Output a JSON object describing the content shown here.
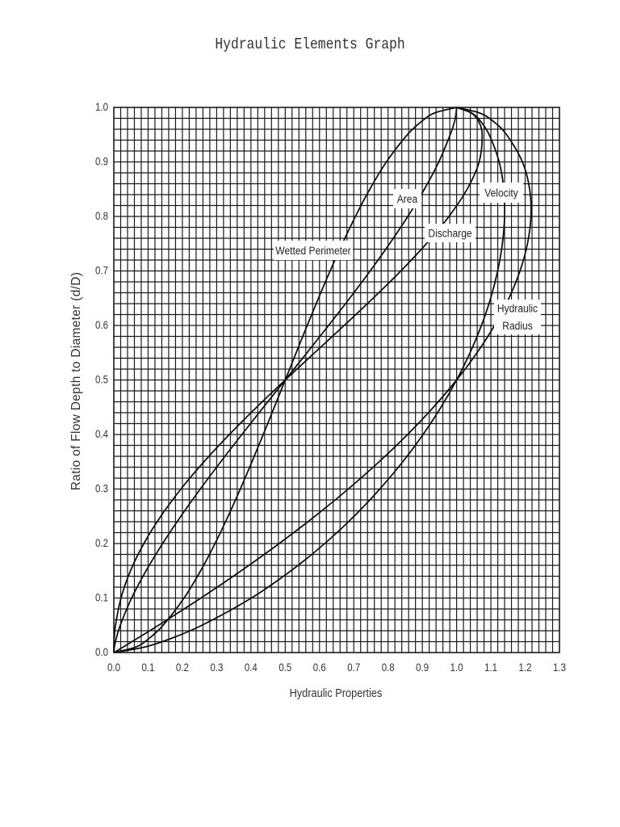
{
  "title": "Hydraulic Elements Graph",
  "chart_data": {
    "type": "line",
    "title": "Hydraulic Elements Graph",
    "xlabel": "Hydraulic Properties",
    "ylabel": "Ratio of Flow Depth to Diameter (d/D)",
    "xlim": [
      0.0,
      1.3
    ],
    "ylim": [
      0.0,
      1.0
    ],
    "x_ticks": [
      "0.0",
      "0.1",
      "0.2",
      "0.3",
      "0.4",
      "0.5",
      "0.6",
      "0.7",
      "0.8",
      "0.9",
      "1.0",
      "1.1",
      "1.2",
      "1.3"
    ],
    "y_ticks": [
      "0.0",
      "0.1",
      "0.2",
      "0.3",
      "0.4",
      "0.5",
      "0.6",
      "0.7",
      "0.8",
      "0.9",
      "1.0"
    ],
    "grid": true,
    "grid_minor_step": {
      "x": 0.02,
      "y": 0.02
    },
    "legend": "inline labels",
    "y": [
      0,
      0.01,
      0.025,
      0.05,
      0.1,
      0.15,
      0.2,
      0.25,
      0.3,
      0.35,
      0.4,
      0.45,
      0.5,
      0.55,
      0.6,
      0.65,
      0.7,
      0.75,
      0.8,
      0.85,
      0.9,
      0.95,
      0.975,
      0.99,
      1.0
    ],
    "series": [
      {
        "name": "Wetted Perimeter",
        "label_lines": [
          "Wetted Perimeter"
        ],
        "label_box": [
          339,
          298,
          98,
          24
        ],
        "values": [
          0,
          0.0638,
          0.1011,
          0.1436,
          0.2048,
          0.2532,
          0.2952,
          0.3333,
          0.369,
          0.403,
          0.4359,
          0.4681,
          0.5,
          0.5319,
          0.5641,
          0.597,
          0.631,
          0.6667,
          0.7048,
          0.7468,
          0.7952,
          0.8564,
          0.8992,
          0.9364,
          1.0
        ]
      },
      {
        "name": "Area",
        "label_lines": [
          "Area"
        ],
        "label_box": [
          487,
          234,
          35,
          24
        ],
        "values": [
          0,
          0.0017,
          0.0067,
          0.0187,
          0.052,
          0.094,
          0.1424,
          0.1955,
          0.2523,
          0.3119,
          0.3735,
          0.4364,
          0.5,
          0.5636,
          0.6265,
          0.6881,
          0.7477,
          0.8045,
          0.8576,
          0.906,
          0.948,
          0.9813,
          0.9945,
          0.9985,
          1.0
        ]
      },
      {
        "name": "Discharge",
        "label_lines": [
          "Discharge"
        ],
        "label_box": [
          526,
          277,
          63,
          23
        ],
        "values": [
          0,
          0.00015,
          0.0011,
          0.0048,
          0.0209,
          0.0486,
          0.0876,
          0.137,
          0.1958,
          0.2629,
          0.337,
          0.4165,
          0.5,
          0.5858,
          0.6719,
          0.7564,
          0.8372,
          0.9119,
          0.9776,
          1.0306,
          1.0657,
          1.0745,
          1.0636,
          1.0421,
          1.0
        ]
      },
      {
        "name": "Velocity",
        "label_lines": [
          "Velocity"
        ],
        "label_box": [
          594,
          226,
          54,
          25
        ],
        "values": [
          0,
          0.0893,
          0.1634,
          0.2569,
          0.4012,
          0.5167,
          0.6153,
          0.7007,
          0.776,
          0.8429,
          0.9022,
          0.9543,
          1.0,
          1.0393,
          1.0724,
          1.0993,
          1.1197,
          1.1335,
          1.1399,
          1.1375,
          1.1242,
          1.095,
          1.0695,
          1.0437,
          1.0
        ]
      },
      {
        "name": "Hydraulic Radius",
        "label_lines": [
          "Hydraulic",
          "Radius"
        ],
        "label_box": [
          612,
          371,
          58,
          43
        ],
        "values": [
          0,
          0.0267,
          0.066,
          0.1302,
          0.2541,
          0.3715,
          0.4824,
          0.5865,
          0.6838,
          0.774,
          0.8569,
          0.9323,
          1.0,
          1.0595,
          1.1106,
          1.1526,
          1.1849,
          1.2067,
          1.2168,
          1.2131,
          1.1921,
          1.1458,
          1.1059,
          1.0663,
          1.0
        ]
      }
    ]
  },
  "colors": {
    "grid": "#1a1a1a",
    "curve": "#111111",
    "text": "#333333",
    "label_bg": "#ffffff"
  }
}
